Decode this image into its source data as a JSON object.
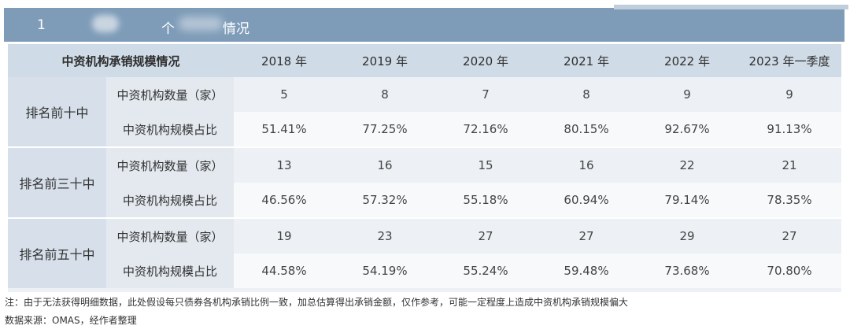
{
  "title": {
    "number": "1",
    "char": "个",
    "tail": "情况"
  },
  "table": {
    "header": [
      "中资机构承销规模情况",
      "2018 年",
      "2019 年",
      "2020 年",
      "2021 年",
      "2022 年",
      "2023 年一季度"
    ],
    "groups": [
      {
        "name": "排名前十中",
        "rows": [
          {
            "label": "中资机构数量（家）",
            "values": [
              "5",
              "8",
              "7",
              "8",
              "9",
              "9"
            ]
          },
          {
            "label": "中资机构规模占比",
            "values": [
              "51.41%",
              "77.25%",
              "72.16%",
              "80.15%",
              "92.67%",
              "91.13%"
            ]
          }
        ]
      },
      {
        "name": "排名前三十中",
        "rows": [
          {
            "label": "中资机构数量（家）",
            "values": [
              "13",
              "16",
              "15",
              "16",
              "22",
              "21"
            ]
          },
          {
            "label": "中资机构规模占比",
            "values": [
              "46.56%",
              "57.32%",
              "55.18%",
              "60.94%",
              "79.14%",
              "78.35%"
            ]
          }
        ]
      },
      {
        "name": "排名前五十中",
        "rows": [
          {
            "label": "中资机构数量（家）",
            "values": [
              "19",
              "23",
              "27",
              "27",
              "29",
              "27"
            ]
          },
          {
            "label": "中资机构规模占比",
            "values": [
              "44.58%",
              "54.19%",
              "55.24%",
              "59.48%",
              "73.68%",
              "70.80%"
            ]
          }
        ]
      }
    ]
  },
  "note": "注：由于无法获得明细数据，此处假设每只债券各机构承销比例一致，加总估算得出承销金额，仅作参考，可能一定程度上造成中资机构承销规模偏大",
  "source": "数据来源：OMAS，经作者整理"
}
